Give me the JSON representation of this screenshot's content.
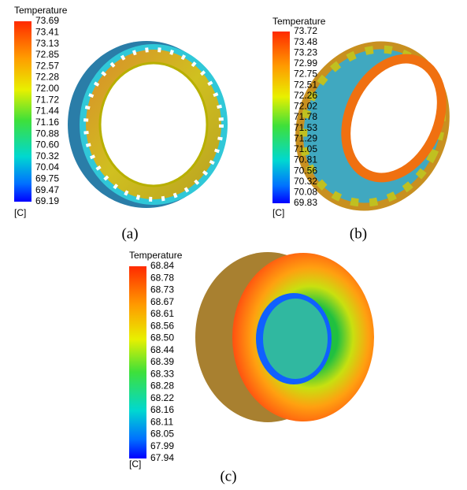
{
  "panels": [
    {
      "legend_title": "Temperature",
      "unit": "[C]",
      "caption": "(a)",
      "levels": [
        "73.69",
        "73.41",
        "73.13",
        "72.85",
        "72.57",
        "72.28",
        "72.00",
        "71.72",
        "71.44",
        "71.16",
        "70.88",
        "70.60",
        "70.32",
        "70.04",
        "69.75",
        "69.47",
        "69.19"
      ]
    },
    {
      "legend_title": "Temperature",
      "unit": "[C]",
      "caption": "(b)",
      "levels": [
        "73.72",
        "73.48",
        "73.23",
        "72.99",
        "72.75",
        "72.51",
        "72.26",
        "72.02",
        "71.78",
        "71.53",
        "71.29",
        "71.05",
        "70.81",
        "70.56",
        "70.32",
        "70.08",
        "69.83"
      ]
    },
    {
      "legend_title": "Temperature",
      "unit": "[C]",
      "caption": "(c)",
      "levels": [
        "68.84",
        "68.78",
        "68.73",
        "68.67",
        "68.61",
        "68.56",
        "68.50",
        "68.44",
        "68.39",
        "68.33",
        "68.28",
        "68.22",
        "68.16",
        "68.11",
        "68.05",
        "67.99",
        "67.94"
      ]
    }
  ]
}
